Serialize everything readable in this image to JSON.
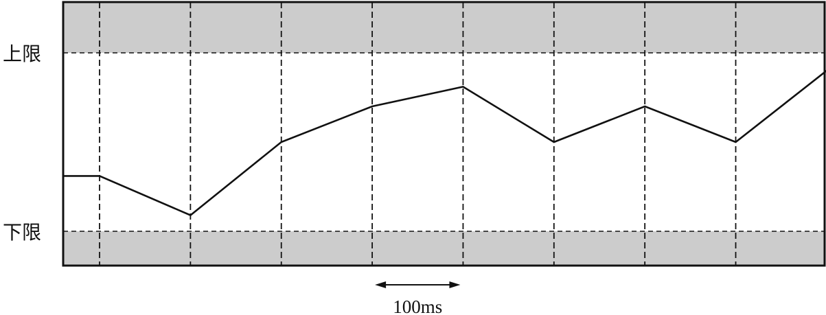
{
  "chart_data": {
    "type": "line",
    "title": "",
    "xlabel": "",
    "ylabel": "",
    "y_axis_labels": {
      "upper": "上限",
      "lower": "下限"
    },
    "interval_label": "100ms",
    "interval_ms": 100,
    "ylim": [
      -0.2,
      1.2
    ],
    "upper_limit": 1.0,
    "lower_limit": 0.0,
    "x": [
      -40,
      0,
      100,
      200,
      300,
      400,
      500,
      600,
      700,
      800
    ],
    "x_unit": "ms",
    "xlim": [
      -40,
      800
    ],
    "series": [
      {
        "values": [
          0.31,
          0.31,
          0.09,
          0.5,
          0.7,
          0.81,
          0.5,
          0.7,
          0.5,
          0.9
        ]
      }
    ],
    "sample_lines_x": [
      0,
      100,
      200,
      300,
      400,
      500,
      600,
      700
    ],
    "out_of_limit_bands": "shaded",
    "colors": {
      "band": "#cccccc",
      "line": "#111111",
      "frame": "#111111"
    }
  }
}
